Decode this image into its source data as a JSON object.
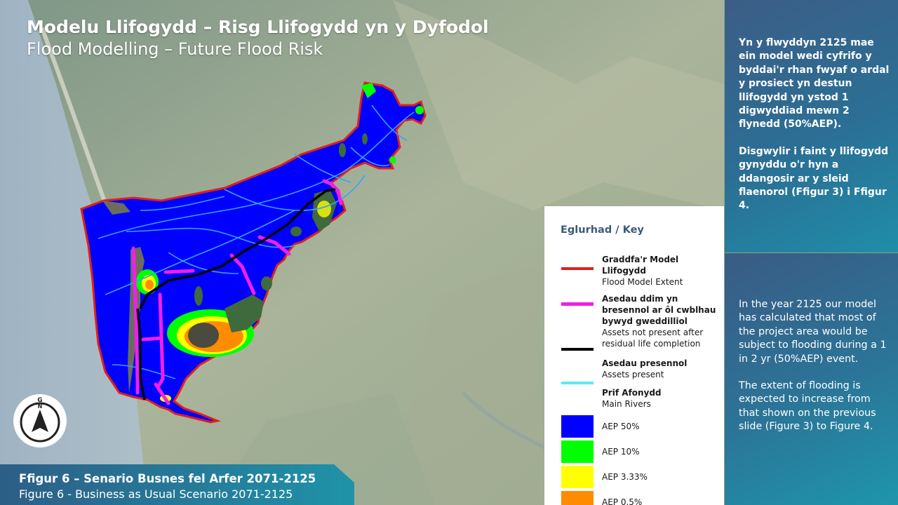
{
  "title": {
    "welsh": "Modelu Llifogydd – Risg Llifogydd yn y Dyfodol",
    "english": "Flood Modelling – Future Flood Risk"
  },
  "summary_welsh": [
    "Yn y flwyddyn 2125 mae ein model wedi cyfrifo y byddai'r rhan fwyaf o ardal y prosiect yn destun llifogydd yn ystod 1 digwyddiad mewn 2 flynedd (50%AEP).",
    "Disgwylir i faint y llifogydd gynyddu o'r hyn a ddangosir ar y sleid flaenorol (Ffigur 3) i Ffigur 4."
  ],
  "summary_english": [
    "In the year 2125 our model has calculated that most of the project area would be subject to flooding during a 1 in 2 yr (50%AEP) event.",
    "The extent of flooding is expected to increase from that shown on the previous slide (Figure 3) to Figure 4."
  ],
  "legend": {
    "title": "Eglurhad / Key",
    "items": [
      {
        "welsh": "Graddfa'r Model Llifogydd",
        "english": "Flood Model Extent",
        "symbol": "line",
        "color": "#e0201a"
      },
      {
        "welsh": "Asedau ddim yn bresennol ar ôl cwblhau bywyd gweddilliol",
        "english": "Assets not present after residual life completion",
        "symbol": "line",
        "color": "#f020e8"
      },
      {
        "welsh": "Asedau presennol",
        "english": "Assets present",
        "symbol": "line",
        "color": "#000000"
      },
      {
        "welsh": "Prif Afonydd",
        "english": "Main Rivers",
        "symbol": "line",
        "color": "#5ee8f2"
      }
    ],
    "aep": [
      {
        "label": "AEP 50%",
        "color": "#0000ff"
      },
      {
        "label": "AEP 10%",
        "color": "#00ff00"
      },
      {
        "label": "AEP 3.33%",
        "color": "#ffff00"
      },
      {
        "label": "AEP 0.5%",
        "color": "#ff8c00"
      }
    ]
  },
  "caption": {
    "welsh": "Ffigur 6 – Senario Busnes fel Arfer 2071-2125",
    "english": "Figure 6 - Business as Usual Scenario 2071-2125"
  },
  "compass": {
    "letters": "G N",
    "icon": "north-arrow-icon"
  },
  "colors": {
    "panel": "#2b6f95",
    "caption": "#1e8fa6",
    "flood_extent": "#e0201a"
  }
}
